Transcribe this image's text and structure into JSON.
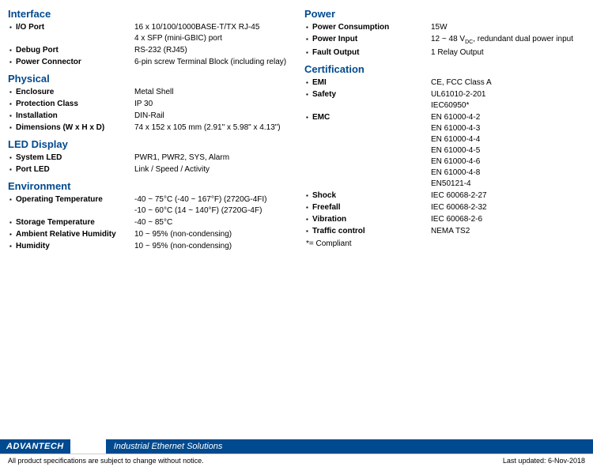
{
  "colors": {
    "brand": "#004a8f",
    "text": "#000000",
    "bg": "#ffffff"
  },
  "left": {
    "sectionInterface": "Interface",
    "ioPortLabel": "I/O Port",
    "ioPortValue1": "16 x 10/100/1000BASE-T/TX RJ-45",
    "ioPortValue2": "4 x SFP (mini-GBIC) port",
    "debugPortLabel": "Debug Port",
    "debugPortValue": "RS-232 (RJ45)",
    "powerConnectorLabel": "Power Connector",
    "powerConnectorValue": "6-pin screw Terminal Block (including relay)",
    "sectionPhysical": "Physical",
    "enclosureLabel": "Enclosure",
    "enclosureValue": "Metal Shell",
    "protectionClassLabel": "Protection Class",
    "protectionClassValue": "IP 30",
    "installationLabel": "Installation",
    "installationValue": "DIN-Rail",
    "dimensionsLabel": "Dimensions (W x H x D)",
    "dimensionsValue": "74 x 152 x 105 mm (2.91\" x 5.98\" x 4.13\")",
    "sectionLed": "LED Display",
    "systemLedLabel": "System LED",
    "systemLedValue": "PWR1, PWR2, SYS, Alarm",
    "portLedLabel": "Port LED",
    "portLedValue": "Link / Speed / Activity",
    "sectionEnv": "Environment",
    "opTempLabel": "Operating Temperature",
    "opTempValue1": "-40 ~ 75°C (-40 ~ 167°F) (2720G-4FI)",
    "opTempValue2": "-10 ~ 60°C (14 ~ 140°F) (2720G-4F)",
    "storageTempLabel": "Storage Temperature",
    "storageTempValue": "-40 ~ 85°C",
    "ambientHumidityLabel": "Ambient Relative Humidity",
    "ambientHumidityValue": "10 ~ 95% (non-condensing)",
    "humidityLabel": "Humidity",
    "humidityValue": "10 ~ 95% (non-condensing)"
  },
  "right": {
    "sectionPower": "Power",
    "powerConsumptionLabel": "Power Consumption",
    "powerConsumptionValue": "15W",
    "powerInputLabel": "Power Input",
    "powerInputPrefix": "12 ~ 48 V",
    "powerInputSub": "DC",
    "powerInputSuffix": ", redundant dual power input",
    "faultOutputLabel": "Fault Output",
    "faultOutputValue": "1 Relay Output",
    "sectionCert": "Certification",
    "emiLabel": "EMI",
    "emiValue": "CE, FCC Class A",
    "safetyLabel": "Safety",
    "safetyValue1": "UL61010-2-201",
    "safetyValue2": "IEC60950*",
    "emcLabel": "EMC",
    "emcValue1": "EN 61000-4-2",
    "emcValue2": "EN 61000-4-3",
    "emcValue3": "EN 61000-4-4",
    "emcValue4": "EN 61000-4-5",
    "emcValue5": "EN 61000-4-6",
    "emcValue6": "EN 61000-4-8",
    "emcValue7": "EN50121-4",
    "shockLabel": "Shock",
    "shockValue": "IEC 60068-2-27",
    "freefallLabel": "Freefall",
    "freefallValue": "IEC 60068-2-32",
    "vibrationLabel": "Vibration",
    "vibrationValue": "IEC 60068-2-6",
    "trafficLabel": "Traffic control",
    "trafficValue": "NEMA TS2",
    "compliantNote": "*= Compliant"
  },
  "footer": {
    "logo": "ADVANTECH",
    "tagline": "Industrial Ethernet Solutions",
    "disclaimer": "All product specifications are subject to change without notice.",
    "lastUpdated": "Last updated: 6-Nov-2018"
  }
}
